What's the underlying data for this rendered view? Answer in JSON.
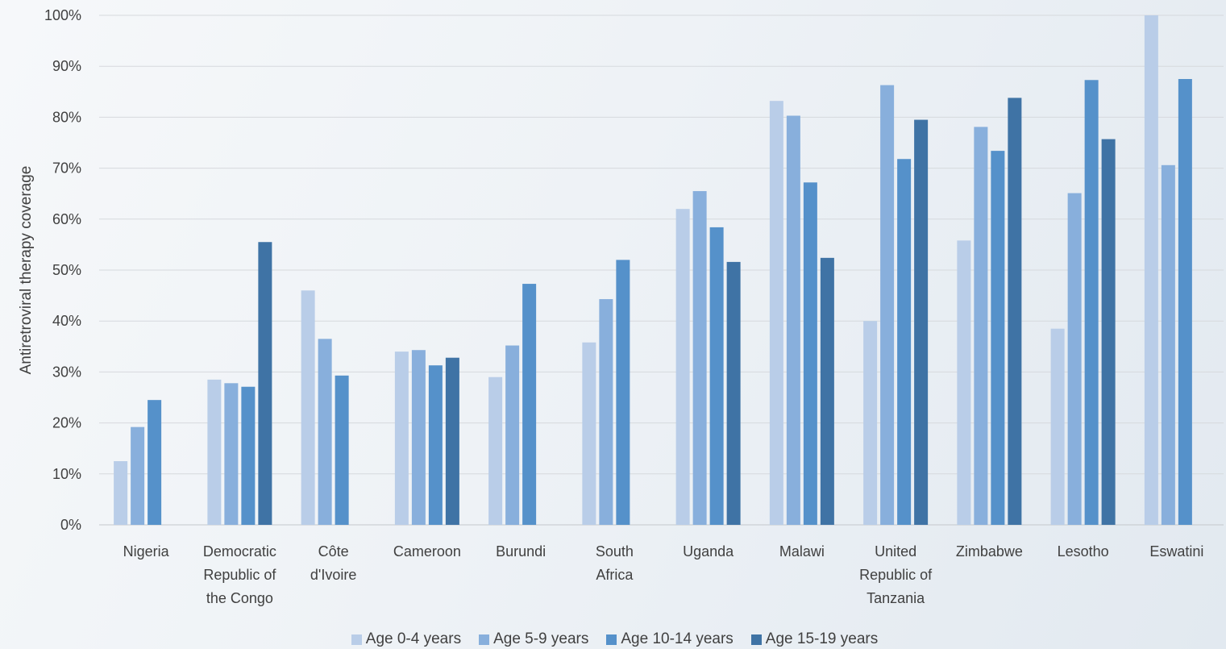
{
  "chart_data": {
    "type": "bar",
    "title": "",
    "xlabel": "",
    "ylabel": "Antiretroviral therapy coverage",
    "ylim": [
      0,
      100
    ],
    "yticks": [
      "0%",
      "10%",
      "20%",
      "30%",
      "40%",
      "50%",
      "60%",
      "70%",
      "80%",
      "90%",
      "100%"
    ],
    "grid": true,
    "legend_position": "bottom",
    "categories": [
      [
        "Nigeria"
      ],
      [
        "Democratic",
        "Republic of",
        "the Congo"
      ],
      [
        "Côte",
        "d'Ivoire"
      ],
      [
        "Cameroon"
      ],
      [
        "Burundi"
      ],
      [
        "South",
        "Africa"
      ],
      [
        "Uganda"
      ],
      [
        "Malawi"
      ],
      [
        "United",
        "Republic of",
        "Tanzania"
      ],
      [
        "Zimbabwe"
      ],
      [
        "Lesotho"
      ],
      [
        "Eswatini"
      ]
    ],
    "series": [
      {
        "name": "Age 0-4 years",
        "color": "#b9cde8",
        "values": [
          12.5,
          28.5,
          46,
          34,
          29,
          35.8,
          62,
          83.2,
          40,
          55.8,
          38.5,
          100
        ]
      },
      {
        "name": "Age 5-9 years",
        "color": "#88afdc",
        "values": [
          19.2,
          27.8,
          36.5,
          34.3,
          35.2,
          44.3,
          65.5,
          80.3,
          86.3,
          78.1,
          65.1,
          70.6
        ]
      },
      {
        "name": "Age 10-14 years",
        "color": "#5591ca",
        "values": [
          24.5,
          27.1,
          29.3,
          31.3,
          47.3,
          52,
          58.4,
          67.2,
          71.8,
          73.4,
          87.3,
          87.5
        ]
      },
      {
        "name": "Age 15-19 years",
        "color": "#3f73a5",
        "values": [
          null,
          55.5,
          null,
          32.8,
          null,
          null,
          51.6,
          52.4,
          79.5,
          83.8,
          75.7,
          null
        ]
      }
    ]
  }
}
